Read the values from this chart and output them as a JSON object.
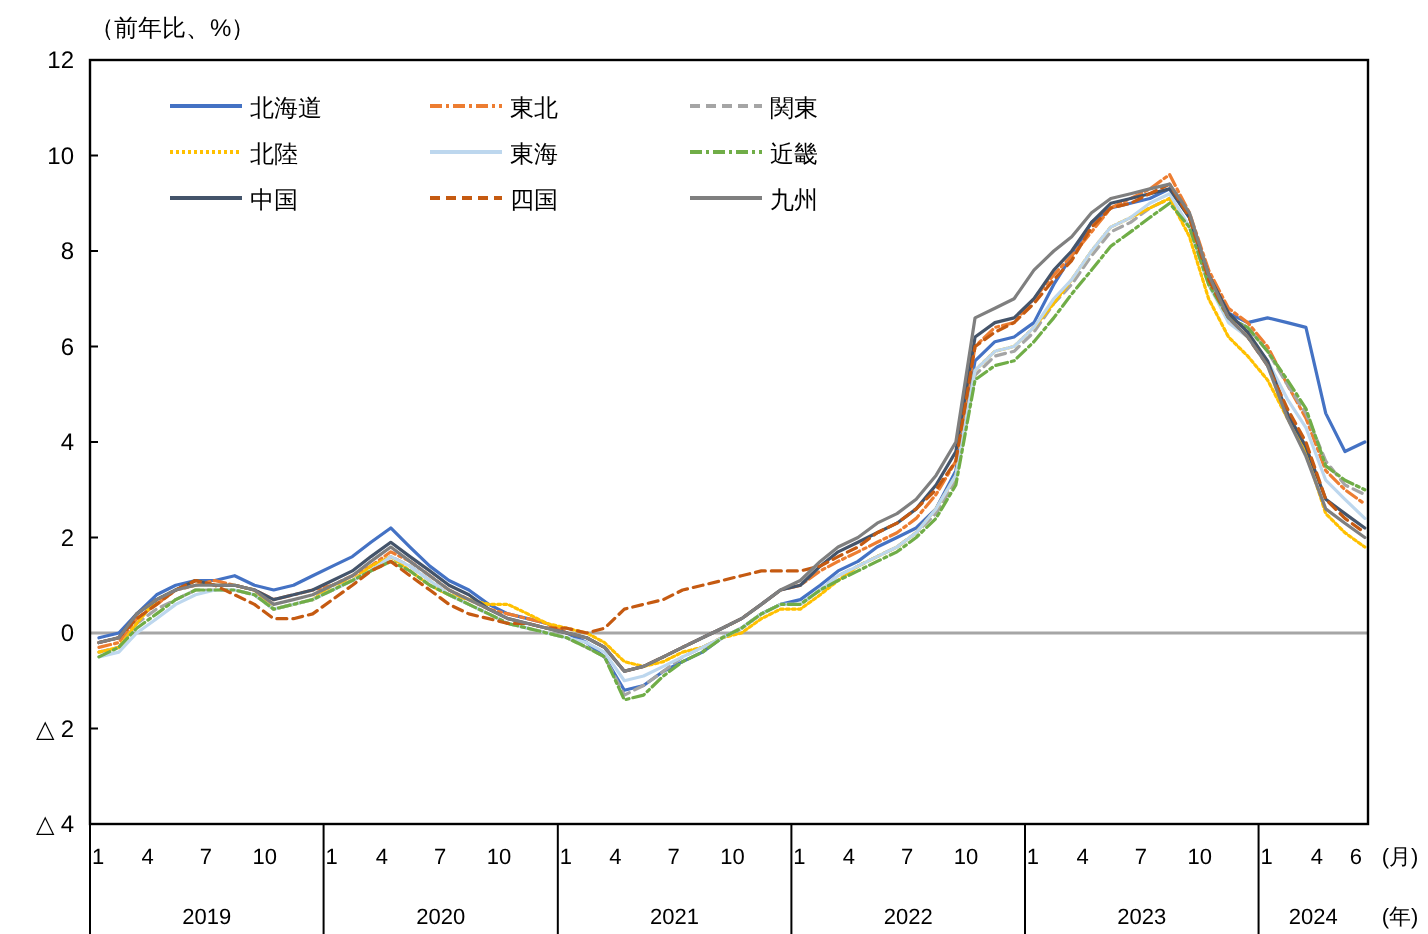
{
  "chart_data": {
    "type": "line",
    "ylabel": "（前年比、%）",
    "xlabel": "(月)",
    "x": [
      "2019-01-15",
      "2019-02-15",
      "2019-03-15",
      "2019-04-15",
      "2019-05-15",
      "2019-06-15",
      "2019-07-15",
      "2019-08-15",
      "2019-09-15",
      "2019-10-15",
      "2019-11-15",
      "2019-12-15",
      "2020-01-15",
      "2020-02-15",
      "2020-03-15",
      "2020-04-15",
      "2020-05-15",
      "2020-06-15",
      "2020-07-15",
      "2020-08-15",
      "2020-09-15",
      "2020-10-15",
      "2020-11-15",
      "2020-12-15",
      "2021-01-15",
      "2021-02-15",
      "2021-03-15",
      "2021-04-15",
      "2021-05-15",
      "2021-06-15",
      "2021-07-15",
      "2021-08-15",
      "2021-09-15",
      "2021-10-15",
      "2021-11-15",
      "2021-12-15",
      "2022-01-15",
      "2022-02-15",
      "2022-03-15",
      "2022-04-15",
      "2022-05-15",
      "2022-06-15",
      "2022-07-15",
      "2022-08-15",
      "2022-09-15",
      "2022-10-15",
      "2022-11-15",
      "2022-12-15",
      "2023-01-15",
      "2023-02-15",
      "2023-03-15",
      "2023-04-15",
      "2023-05-15",
      "2023-06-15",
      "2023-07-15",
      "2023-08-15",
      "2023-09-15",
      "2023-10-15",
      "2023-11-15",
      "2023-12-15",
      "2024-01-15",
      "2024-02-15",
      "2024-03-15",
      "2024-04-15",
      "2024-05-15",
      "2024-06-15"
    ],
    "series": [
      {
        "name": "北海道",
        "color": "#4472c4",
        "line_style": "solid",
        "values": [
          -0.1,
          0.0,
          0.4,
          0.8,
          1.0,
          1.1,
          1.1,
          1.2,
          1.0,
          0.9,
          1.0,
          1.2,
          1.4,
          1.6,
          1.9,
          2.2,
          1.8,
          1.4,
          1.1,
          0.9,
          0.6,
          0.4,
          0.3,
          0.2,
          0.0,
          -0.2,
          -0.5,
          -1.2,
          -1.1,
          -0.8,
          -0.6,
          -0.4,
          -0.1,
          0.1,
          0.4,
          0.6,
          0.7,
          1.0,
          1.3,
          1.5,
          1.8,
          2.0,
          2.2,
          2.6,
          3.4,
          5.7,
          6.1,
          6.2,
          6.5,
          7.3,
          7.9,
          8.6,
          8.9,
          9.0,
          9.1,
          9.3,
          8.7,
          7.5,
          6.7,
          6.5,
          6.6,
          6.5,
          6.4,
          4.6,
          3.8,
          4.0
        ]
      },
      {
        "name": "東北",
        "color": "#ed7d31",
        "line_style": "dashdot",
        "values": [
          -0.3,
          -0.2,
          0.3,
          0.6,
          0.9,
          1.0,
          1.1,
          1.0,
          0.9,
          0.7,
          0.8,
          0.9,
          1.0,
          1.2,
          1.4,
          1.7,
          1.5,
          1.2,
          0.9,
          0.7,
          0.5,
          0.4,
          0.3,
          0.2,
          0.0,
          -0.1,
          -0.3,
          -0.8,
          -0.7,
          -0.5,
          -0.3,
          -0.1,
          0.1,
          0.3,
          0.6,
          0.9,
          1.0,
          1.3,
          1.5,
          1.7,
          1.9,
          2.1,
          2.4,
          2.9,
          3.6,
          6.0,
          6.4,
          6.5,
          7.0,
          7.5,
          7.9,
          8.4,
          8.9,
          9.1,
          9.3,
          9.6,
          8.8,
          7.6,
          6.8,
          6.5,
          6.0,
          5.2,
          4.5,
          3.4,
          3.0,
          2.7
        ]
      },
      {
        "name": "関東",
        "color": "#a5a5a5",
        "line_style": "dashed",
        "values": [
          -0.4,
          -0.3,
          0.2,
          0.5,
          0.7,
          0.9,
          0.9,
          0.9,
          0.8,
          0.5,
          0.6,
          0.7,
          0.9,
          1.1,
          1.3,
          1.6,
          1.4,
          1.1,
          0.8,
          0.6,
          0.4,
          0.2,
          0.1,
          0.0,
          -0.1,
          -0.3,
          -0.5,
          -1.3,
          -1.1,
          -0.8,
          -0.5,
          -0.3,
          -0.1,
          0.1,
          0.4,
          0.6,
          0.6,
          0.9,
          1.2,
          1.4,
          1.6,
          1.8,
          2.1,
          2.5,
          3.2,
          5.4,
          5.8,
          5.9,
          6.3,
          6.9,
          7.3,
          7.9,
          8.4,
          8.6,
          8.9,
          9.1,
          8.5,
          7.3,
          6.6,
          6.4,
          5.9,
          5.2,
          4.6,
          3.6,
          3.1,
          2.9
        ]
      },
      {
        "name": "北陸",
        "color": "#ffc000",
        "line_style": "dotted",
        "values": [
          -0.4,
          -0.3,
          0.2,
          0.7,
          0.9,
          1.1,
          1.0,
          1.0,
          0.9,
          0.5,
          0.6,
          0.7,
          1.0,
          1.1,
          1.4,
          1.6,
          1.3,
          1.0,
          0.8,
          0.7,
          0.6,
          0.6,
          0.4,
          0.2,
          0.1,
          0.0,
          -0.2,
          -0.6,
          -0.7,
          -0.6,
          -0.4,
          -0.3,
          -0.1,
          0.0,
          0.3,
          0.5,
          0.5,
          0.8,
          1.1,
          1.4,
          1.6,
          1.8,
          2.1,
          2.6,
          3.3,
          5.5,
          5.9,
          6.0,
          6.4,
          6.9,
          7.4,
          8.0,
          8.5,
          8.7,
          8.9,
          9.1,
          8.3,
          7.0,
          6.2,
          5.8,
          5.3,
          4.5,
          3.8,
          2.5,
          2.1,
          1.8
        ]
      },
      {
        "name": "東海",
        "color": "#bdd7ee",
        "line_style": "solid",
        "values": [
          -0.5,
          -0.4,
          0.0,
          0.3,
          0.6,
          0.8,
          0.9,
          0.9,
          0.8,
          0.5,
          0.6,
          0.7,
          0.9,
          1.1,
          1.3,
          1.6,
          1.4,
          1.1,
          0.8,
          0.6,
          0.4,
          0.2,
          0.1,
          0.0,
          -0.1,
          -0.2,
          -0.4,
          -1.0,
          -0.9,
          -0.7,
          -0.5,
          -0.3,
          -0.1,
          0.1,
          0.4,
          0.6,
          0.6,
          0.9,
          1.2,
          1.4,
          1.6,
          1.8,
          2.1,
          2.6,
          3.3,
          5.5,
          5.9,
          6.0,
          6.4,
          7.0,
          7.4,
          8.0,
          8.5,
          8.7,
          9.0,
          9.2,
          8.5,
          7.3,
          6.5,
          6.2,
          5.7,
          4.9,
          4.3,
          3.2,
          2.8,
          2.4
        ]
      },
      {
        "name": "近畿",
        "color": "#70ad47",
        "line_style": "dashdot",
        "values": [
          -0.5,
          -0.3,
          0.1,
          0.4,
          0.7,
          0.9,
          0.9,
          0.9,
          0.8,
          0.5,
          0.6,
          0.7,
          0.9,
          1.1,
          1.3,
          1.5,
          1.3,
          1.0,
          0.8,
          0.6,
          0.4,
          0.2,
          0.1,
          0.0,
          -0.1,
          -0.3,
          -0.5,
          -1.4,
          -1.3,
          -0.9,
          -0.6,
          -0.4,
          -0.1,
          0.1,
          0.4,
          0.6,
          0.6,
          0.9,
          1.1,
          1.3,
          1.5,
          1.7,
          2.0,
          2.4,
          3.1,
          5.3,
          5.6,
          5.7,
          6.1,
          6.6,
          7.1,
          7.6,
          8.1,
          8.4,
          8.7,
          9.0,
          8.5,
          7.3,
          6.6,
          6.4,
          5.9,
          5.3,
          4.7,
          3.5,
          3.2,
          3.0
        ]
      },
      {
        "name": "中国",
        "color": "#44546a",
        "line_style": "solid",
        "values": [
          -0.2,
          -0.1,
          0.4,
          0.7,
          0.9,
          1.1,
          1.0,
          1.0,
          0.9,
          0.7,
          0.8,
          0.9,
          1.1,
          1.3,
          1.6,
          1.9,
          1.6,
          1.3,
          1.0,
          0.8,
          0.5,
          0.3,
          0.2,
          0.1,
          0.0,
          -0.1,
          -0.3,
          -0.8,
          -0.7,
          -0.5,
          -0.3,
          -0.1,
          0.1,
          0.3,
          0.6,
          0.9,
          1.0,
          1.4,
          1.7,
          1.9,
          2.1,
          2.3,
          2.6,
          3.1,
          3.8,
          6.2,
          6.5,
          6.6,
          7.0,
          7.6,
          8.0,
          8.6,
          9.0,
          9.1,
          9.2,
          9.3,
          8.7,
          7.5,
          6.7,
          6.3,
          5.7,
          4.6,
          3.9,
          2.8,
          2.5,
          2.2
        ]
      },
      {
        "name": "四国",
        "color": "#c55a11",
        "line_style": "dashed",
        "values": [
          -0.2,
          -0.1,
          0.3,
          0.6,
          0.9,
          1.1,
          1.0,
          0.8,
          0.6,
          0.3,
          0.3,
          0.4,
          0.7,
          1.0,
          1.3,
          1.5,
          1.2,
          0.9,
          0.6,
          0.4,
          0.3,
          0.2,
          0.2,
          0.1,
          0.1,
          0.0,
          0.1,
          0.5,
          0.6,
          0.7,
          0.9,
          1.0,
          1.1,
          1.2,
          1.3,
          1.3,
          1.3,
          1.4,
          1.6,
          1.8,
          2.1,
          2.3,
          2.6,
          3.0,
          3.6,
          6.0,
          6.3,
          6.5,
          6.9,
          7.4,
          7.8,
          8.5,
          8.9,
          9.0,
          9.2,
          9.4,
          8.7,
          7.4,
          6.6,
          6.2,
          5.6,
          4.7,
          4.0,
          2.8,
          2.4,
          2.1
        ]
      },
      {
        "name": "九州",
        "color": "#7f7f7f",
        "line_style": "solid",
        "values": [
          -0.2,
          -0.1,
          0.4,
          0.7,
          0.9,
          1.0,
          1.0,
          1.0,
          0.9,
          0.6,
          0.7,
          0.8,
          1.0,
          1.2,
          1.5,
          1.8,
          1.5,
          1.2,
          0.9,
          0.7,
          0.5,
          0.3,
          0.2,
          0.1,
          0.0,
          -0.1,
          -0.3,
          -0.8,
          -0.7,
          -0.5,
          -0.3,
          -0.1,
          0.1,
          0.3,
          0.6,
          0.9,
          1.1,
          1.5,
          1.8,
          2.0,
          2.3,
          2.5,
          2.8,
          3.3,
          4.0,
          6.6,
          6.8,
          7.0,
          7.6,
          8.0,
          8.3,
          8.8,
          9.1,
          9.2,
          9.3,
          9.4,
          8.8,
          7.5,
          6.6,
          6.2,
          5.6,
          4.5,
          3.7,
          2.6,
          2.3,
          2.0
        ]
      }
    ],
    "xlim": [
      "2019-01-01",
      "2024-06-20"
    ],
    "xticks": [
      {
        "value": "2019-01-01",
        "label": "1"
      },
      {
        "value": "2019-04-01",
        "label": "4"
      },
      {
        "value": "2019-07-01",
        "label": "7"
      },
      {
        "value": "2019-10-01",
        "label": "10"
      },
      {
        "value": "2020-01-01",
        "label": "1"
      },
      {
        "value": "2020-04-01",
        "label": "4"
      },
      {
        "value": "2020-07-01",
        "label": "7"
      },
      {
        "value": "2020-10-01",
        "label": "10"
      },
      {
        "value": "2021-01-01",
        "label": "1"
      },
      {
        "value": "2021-04-01",
        "label": "4"
      },
      {
        "value": "2021-07-01",
        "label": "7"
      },
      {
        "value": "2021-10-01",
        "label": "10"
      },
      {
        "value": "2022-01-01",
        "label": "1"
      },
      {
        "value": "2022-04-01",
        "label": "4"
      },
      {
        "value": "2022-07-01",
        "label": "7"
      },
      {
        "value": "2022-10-01",
        "label": "10"
      },
      {
        "value": "2023-01-01",
        "label": "1"
      },
      {
        "value": "2023-04-01",
        "label": "4"
      },
      {
        "value": "2023-07-01",
        "label": "7"
      },
      {
        "value": "2023-10-01",
        "label": "10"
      },
      {
        "value": "2024-01-01",
        "label": "1"
      },
      {
        "value": "2024-04-01",
        "label": "4"
      },
      {
        "value": "2024-06-01",
        "label": "6"
      }
    ],
    "ylim": [
      -4,
      12
    ],
    "yticks": [
      {
        "value": -4,
        "label": "△ 4"
      },
      {
        "value": -2,
        "label": "△ 2"
      },
      0,
      2,
      4,
      6,
      8,
      10,
      12
    ],
    "ref_lines": [
      {
        "axis": "y",
        "value": 0,
        "color": "#a6a6a6"
      }
    ],
    "annotations": [
      "2019",
      "2020",
      "2021",
      "2022",
      "2023",
      "2024",
      "(年)"
    ],
    "legend": "top left"
  }
}
